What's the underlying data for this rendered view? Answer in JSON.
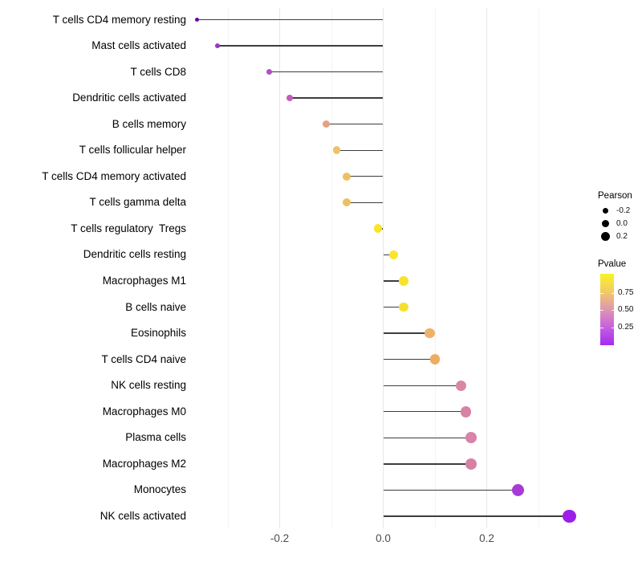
{
  "chart_data": {
    "type": "lollipop",
    "orientation": "horizontal",
    "title": "",
    "xlabel": "",
    "ylabel": "",
    "x_axis": {
      "tick_labels": [
        "-0.2",
        "0.0",
        "0.2"
      ],
      "tick_values": [
        -0.2,
        0.0,
        0.2
      ],
      "range": [
        -0.37,
        0.41
      ],
      "gridlines_major": [
        -0.2,
        0.0,
        0.2
      ],
      "gridlines_minor": [
        -0.3,
        -0.1,
        0.1,
        0.3
      ]
    },
    "categories": [
      "T cells CD4 memory resting",
      "Mast cells activated",
      "T cells CD8",
      "Dendritic cells activated",
      "B cells memory",
      "T cells follicular helper",
      "T cells CD4 memory activated",
      "T cells gamma delta",
      "T cells regulatory  Tregs",
      "Dendritic cells resting",
      "Macrophages M1",
      "B cells naive",
      "Eosinophils",
      "T cells CD4 naive",
      "NK cells resting",
      "Macrophages M0",
      "Plasma cells",
      "Macrophages M2",
      "Monocytes",
      "NK cells activated"
    ],
    "series": [
      {
        "name": "Pearson",
        "values": [
          -0.36,
          -0.32,
          -0.22,
          -0.18,
          -0.11,
          -0.09,
          -0.07,
          -0.07,
          -0.01,
          0.02,
          0.04,
          0.04,
          0.09,
          0.1,
          0.15,
          0.16,
          0.17,
          0.17,
          0.26,
          0.36
        ]
      }
    ],
    "point_colors": [
      "#6208a8",
      "#9b35c8",
      "#b44ec6",
      "#c45cba",
      "#e5a183",
      "#eec267",
      "#eec05e",
      "#edbf60",
      "#f9e522",
      "#f8e62c",
      "#f7e32a",
      "#f6e02e",
      "#eeb269",
      "#ecac63",
      "#d987a6",
      "#d683a4",
      "#d883a8",
      "#d780a5",
      "#a83ad6",
      "#9c1fe8"
    ],
    "size_encoding": "Pearson",
    "color_encoding": "Pvalue",
    "stem_color": "#3d3d3d",
    "legend_position": "right"
  },
  "legend_pearson": {
    "title": "Pearson",
    "entries": [
      "-0.2",
      "0.0",
      "0.2"
    ]
  },
  "legend_pvalue": {
    "title": "Pvalue",
    "ticks": [
      "0.75",
      "0.50",
      "0.25"
    ],
    "gradient": [
      "#f9f321",
      "#f2cb66",
      "#df95b2",
      "#c660de",
      "#a52af0"
    ]
  }
}
